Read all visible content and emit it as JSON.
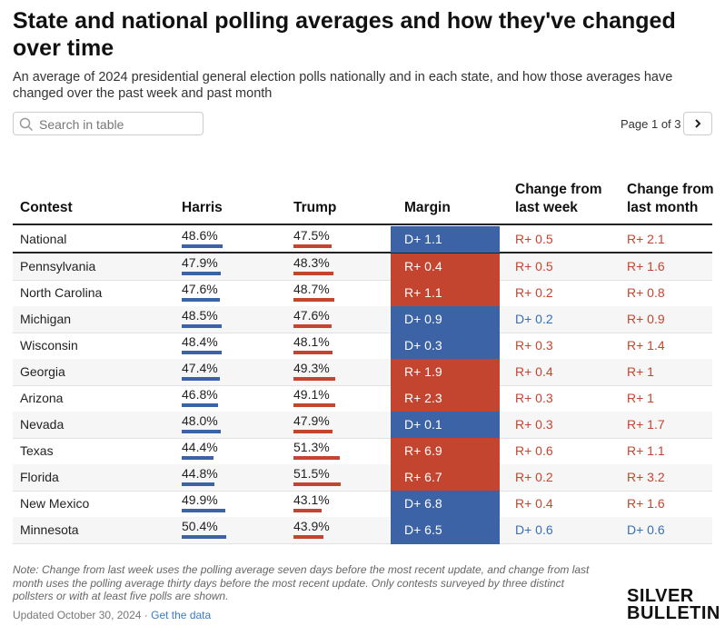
{
  "header": {
    "title": "State and national polling averages and how they've changed over time",
    "subtitle": "An average of 2024 presidential general election polls nationally and in each state, and how those averages have changed over the past week and past month"
  },
  "controls": {
    "search_placeholder": "Search in table",
    "page_label": "Page 1 of 3"
  },
  "table": {
    "columns": [
      "Contest",
      "Harris",
      "Trump",
      "Margin",
      "Change from last week",
      "Change from last month"
    ],
    "rows": [
      [
        "National",
        "48.6%",
        "47.5%",
        "D+ 1.1",
        "R+ 0.5",
        "R+ 2.1"
      ],
      [
        "Pennsylvania",
        "47.9%",
        "48.3%",
        "R+ 0.4",
        "R+ 0.5",
        "R+ 1.6"
      ],
      [
        "North Carolina",
        "47.6%",
        "48.7%",
        "R+ 1.1",
        "R+ 0.2",
        "R+ 0.8"
      ],
      [
        "Michigan",
        "48.5%",
        "47.6%",
        "D+ 0.9",
        "D+ 0.2",
        "R+ 0.9"
      ],
      [
        "Wisconsin",
        "48.4%",
        "48.1%",
        "D+ 0.3",
        "R+ 0.3",
        "R+ 1.4"
      ],
      [
        "Georgia",
        "47.4%",
        "49.3%",
        "R+ 1.9",
        "R+ 0.4",
        "R+ 1"
      ],
      [
        "Arizona",
        "46.8%",
        "49.1%",
        "R+ 2.3",
        "R+ 0.3",
        "R+ 1"
      ],
      [
        "Nevada",
        "48.0%",
        "47.9%",
        "D+ 0.1",
        "R+ 0.3",
        "R+ 1.7"
      ],
      [
        "Texas",
        "44.4%",
        "51.3%",
        "R+ 6.9",
        "R+ 0.6",
        "R+ 1.1"
      ],
      [
        "Florida",
        "44.8%",
        "51.5%",
        "R+ 6.7",
        "R+ 0.2",
        "R+ 3.2"
      ],
      [
        "New Mexico",
        "49.9%",
        "43.1%",
        "D+ 6.8",
        "R+ 0.4",
        "R+ 1.6"
      ],
      [
        "Minnesota",
        "50.4%",
        "43.9%",
        "D+ 6.5",
        "D+ 0.6",
        "D+ 0.6"
      ]
    ]
  },
  "note": "Note: Change from last week uses the polling average seven days before the most recent update, and change from last month uses the polling average thirty days before the most recent update. Only contests surveyed by three distinct pollsters or with at least five polls are shown.",
  "footer": {
    "updated": "Updated October 30, 2024",
    "separator": "·",
    "link": "Get the data"
  },
  "logo": [
    "SILVER",
    "BULLETIN"
  ]
}
